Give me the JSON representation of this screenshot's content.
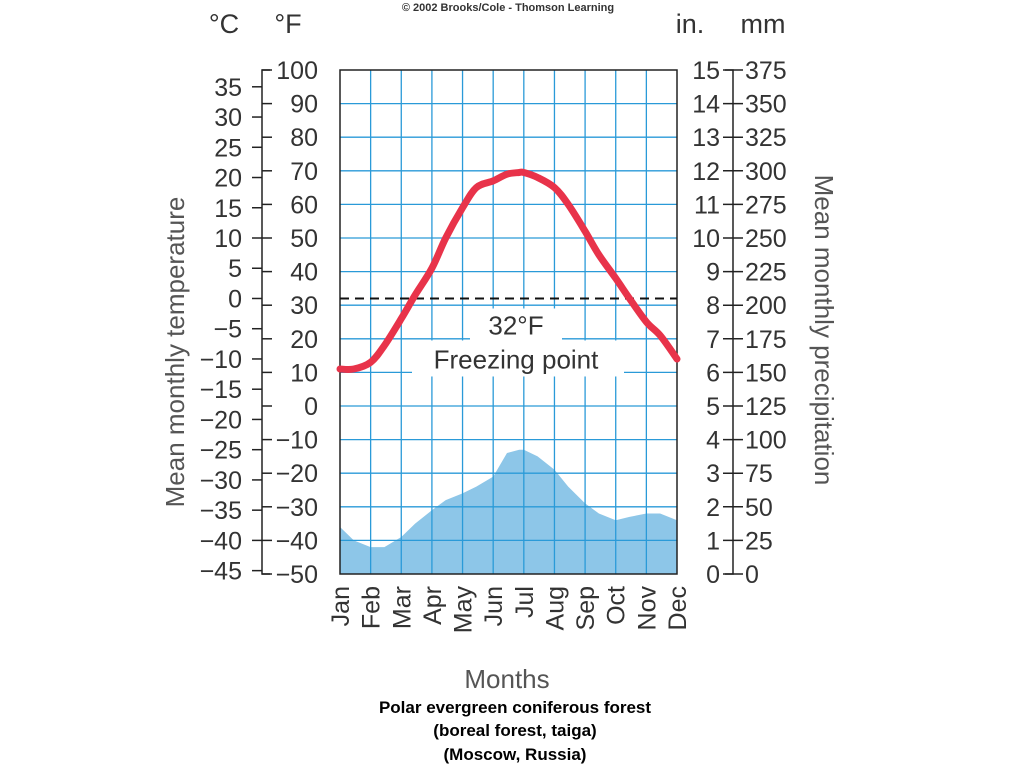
{
  "copyright": "© 2002 Brooks/Cole - Thomson Learning",
  "units": {
    "celsius": "°C",
    "fahrenheit": "°F",
    "inches": "in.",
    "millimeters": "mm"
  },
  "chart_data": {
    "type": "area",
    "xlabel": "Months",
    "categories": [
      "Jan",
      "Feb",
      "Mar",
      "Apr",
      "May",
      "Jun",
      "Jul",
      "Aug",
      "Sep",
      "Oct",
      "Nov",
      "Dec"
    ],
    "temperature_axis": {
      "title": "Mean monthly temperature",
      "fahrenheit_range": [
        -50,
        100
      ],
      "fahrenheit_ticks": [
        "100",
        "90",
        "80",
        "70",
        "60",
        "50",
        "40",
        "30",
        "20",
        "10",
        "0",
        "−10",
        "−20",
        "−30",
        "−40",
        "−50"
      ],
      "celsius_ticks": [
        "35",
        "30",
        "25",
        "20",
        "15",
        "10",
        "5",
        "0",
        "−5",
        "−10",
        "−15",
        "−20",
        "−25",
        "−30",
        "−35",
        "−40",
        "−45"
      ]
    },
    "precipitation_axis": {
      "title": "Mean monthly precipitation",
      "inch_range": [
        0,
        15
      ],
      "inch_ticks": [
        "15",
        "14",
        "13",
        "12",
        "11",
        "10",
        "9",
        "8",
        "7",
        "6",
        "5",
        "4",
        "3",
        "2",
        "1",
        "0"
      ],
      "mm_ticks": [
        "375",
        "350",
        "325",
        "300",
        "275",
        "250",
        "225",
        "200",
        "175",
        "150",
        "125",
        "100",
        "75",
        "50",
        "25",
        "0"
      ]
    },
    "grid": true,
    "series": [
      {
        "x": [
          0.0,
          0.45,
          1.0,
          1.45,
          2.0,
          2.45,
          3.0,
          3.45,
          4.0,
          4.45,
          5.0,
          5.45,
          5.85,
          6.0,
          6.45,
          7.0,
          7.45,
          8.0,
          8.45,
          9.0,
          9.45,
          10.0,
          10.45,
          11.0
        ],
        "values": [
          11,
          11,
          13,
          18,
          26,
          33,
          41,
          50,
          59,
          65,
          67,
          69,
          69.5,
          69.5,
          68,
          65,
          60,
          52,
          45,
          38,
          32,
          25,
          21,
          14
        ],
        "color": "#e8334a"
      },
      {
        "x": [
          0.0,
          0.45,
          1.0,
          1.45,
          2.0,
          2.45,
          3.0,
          3.45,
          4.0,
          4.45,
          5.0,
          5.45,
          5.85,
          6.0,
          6.45,
          7.0,
          7.45,
          8.0,
          8.45,
          9.0,
          9.45,
          10.0,
          10.45,
          11.0
        ],
        "values": [
          1.4,
          1.0,
          0.8,
          0.8,
          1.1,
          1.5,
          1.9,
          2.2,
          2.4,
          2.6,
          2.9,
          3.6,
          3.7,
          3.7,
          3.5,
          3.1,
          2.6,
          2.1,
          1.8,
          1.6,
          1.7,
          1.8,
          1.8,
          1.6
        ],
        "color": "#8dc6e8"
      }
    ],
    "reference_line": {
      "fahrenheit": 32,
      "style": "dashed",
      "label": "32°F",
      "sublabel": "Freezing point"
    }
  },
  "caption": {
    "line1": "Polar evergreen coniferous forest",
    "line2": "(boreal forest, taiga)",
    "line3": "(Moscow, Russia)"
  }
}
